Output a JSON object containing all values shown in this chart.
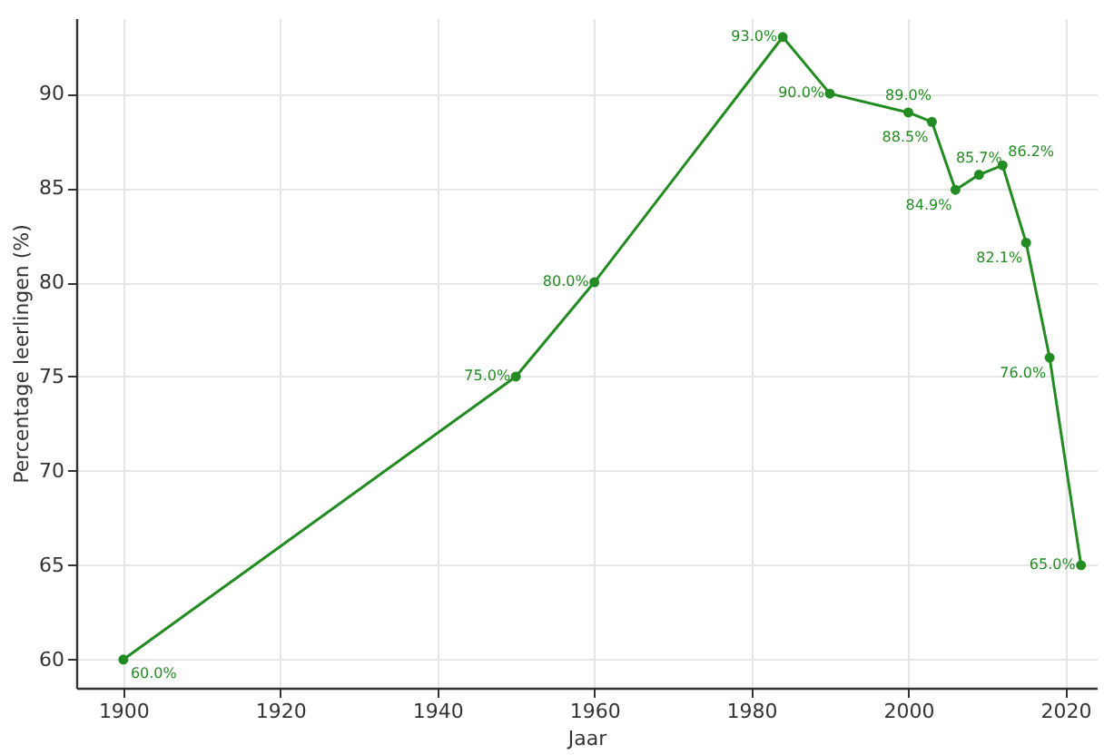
{
  "chart_data": {
    "type": "line",
    "xlabel": "Jaar",
    "ylabel": "Percentage leerlingen (%)",
    "x": [
      1900,
      1950,
      1960,
      1984,
      1990,
      2000,
      2003,
      2006,
      2009,
      2012,
      2015,
      2018,
      2022
    ],
    "series": [
      {
        "color": "#228b22",
        "values": [
          60,
          75,
          80,
          93,
          90,
          89,
          88.5,
          84.9,
          85.7,
          86.2,
          82.1,
          76,
          65
        ],
        "value_labels": [
          "60.0%",
          "75.0%",
          "80.0%",
          "93.0%",
          "90.0%",
          "89.0%",
          "88.5%",
          "84.9%",
          "85.7%",
          "86.2%",
          "82.1%",
          "76.0%",
          "65.0%"
        ]
      }
    ],
    "xlim": [
      1894,
      2024
    ],
    "xticks": [
      1900,
      1920,
      1940,
      1960,
      1980,
      2000,
      2020
    ],
    "ylim": [
      58.5,
      94
    ],
    "yticks": [
      60,
      65,
      70,
      75,
      80,
      85,
      90
    ],
    "grid": true,
    "marker": "circle",
    "line_style": "solid"
  }
}
